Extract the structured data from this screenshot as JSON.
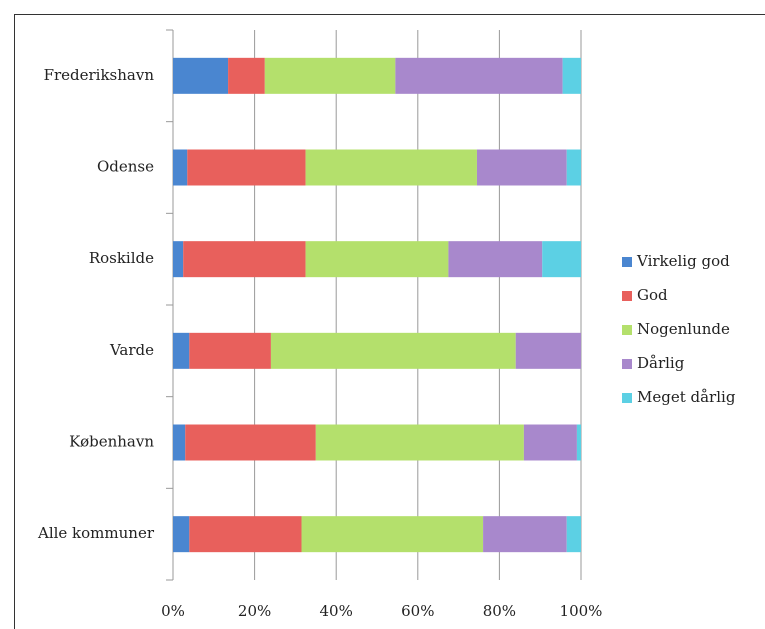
{
  "chart_data": {
    "type": "stacked-barh",
    "categories": [
      "Frederikshavn",
      "Odense",
      "Roskilde",
      "Varde",
      "København",
      "Alle kommuner"
    ],
    "series": [
      {
        "name": "Virkelig god",
        "color": "#4a86d0",
        "values": [
          13.5,
          3.5,
          2.5,
          4,
          3,
          4
        ]
      },
      {
        "name": "God",
        "color": "#e8605c",
        "values": [
          9,
          29,
          30,
          20,
          32,
          27.5
        ]
      },
      {
        "name": "Nogenlunde",
        "color": "#b4e06c",
        "values": [
          32,
          42,
          35,
          60,
          51,
          44.5
        ]
      },
      {
        "name": "Dårlig",
        "color": "#a888cc",
        "values": [
          41,
          22,
          23,
          16,
          13,
          20.5
        ]
      },
      {
        "name": "Meget dårlig",
        "color": "#5cd0e4",
        "values": [
          4.5,
          3.5,
          9.5,
          0,
          1,
          3.5
        ]
      }
    ],
    "xlim": [
      0,
      100
    ],
    "xticks": [
      {
        "value": 0,
        "label": "0%"
      },
      {
        "value": 20,
        "label": "20%"
      },
      {
        "value": 40,
        "label": "40%"
      },
      {
        "value": 60,
        "label": "60%"
      },
      {
        "value": 80,
        "label": "80%"
      },
      {
        "value": 100,
        "label": "100%"
      }
    ],
    "grid": true,
    "legend": "right"
  }
}
